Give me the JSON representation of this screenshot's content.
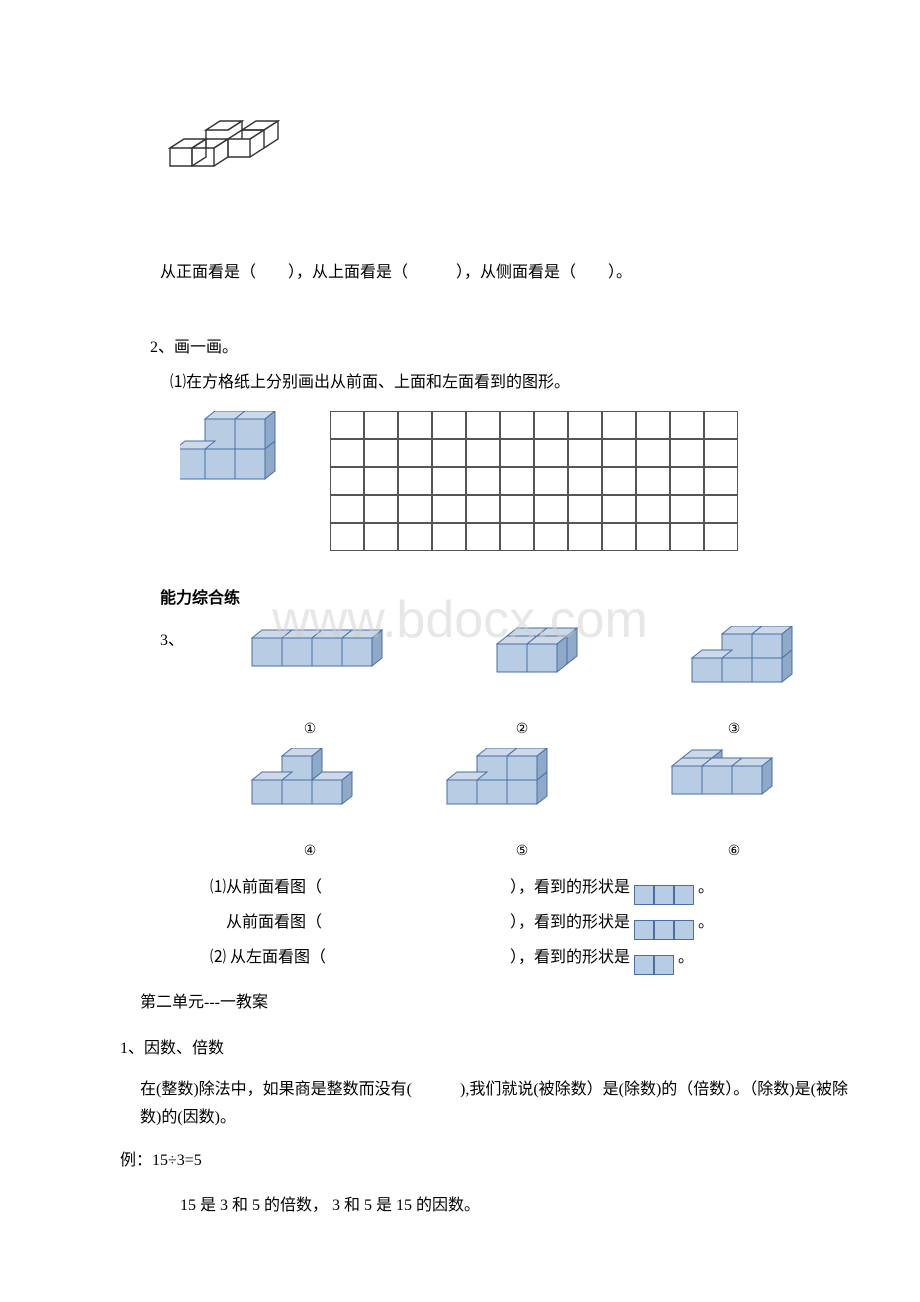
{
  "watermark_text": "www.bdocx.com",
  "cube_outline_caption": "从正面看是（　　），从上面看是（　　　），从侧面看是（　　）。",
  "q2": {
    "title": "2、画一画。",
    "sub1": "⑴在方格纸上分别画出从前面、上面和左面看到的图形。"
  },
  "section3_heading": "能力综合练",
  "q3_label": "3、",
  "circled": {
    "c1": "①",
    "c2": "②",
    "c3": "③",
    "c4": "④",
    "c5": "⑤",
    "c6": "⑥"
  },
  "q3_lines": {
    "l1a": "⑴从前面看图（",
    "l1b": "），看到的形状是",
    "l2a": "　从前面看图（",
    "l2b": "），看到的形状是",
    "l3a": "⑵ 从左面看图（",
    "l3b": "），看到的形状是",
    "period": "。"
  },
  "unit2": {
    "heading": "第二单元---一教案",
    "item1": "1、因数、倍数",
    "def": "在(整数)除法中，如果商是整数而没有(　　　),我们就说(被除数）是(除数)的（倍数）。（除数)是(被除数)的(因数)。",
    "example_label": "例：15÷3=5",
    "example_text": "15 是 3 和 5 的倍数， 3 和 5 是 15 的因数。"
  },
  "grid": {
    "rows": 5,
    "cols": 12
  },
  "colors": {
    "cube_top": "#cdd9e8",
    "cube_front": "#b8cce4",
    "cube_side": "#8fa9c9",
    "cube_edge": "#4a6fa5",
    "outline": "#333333"
  }
}
